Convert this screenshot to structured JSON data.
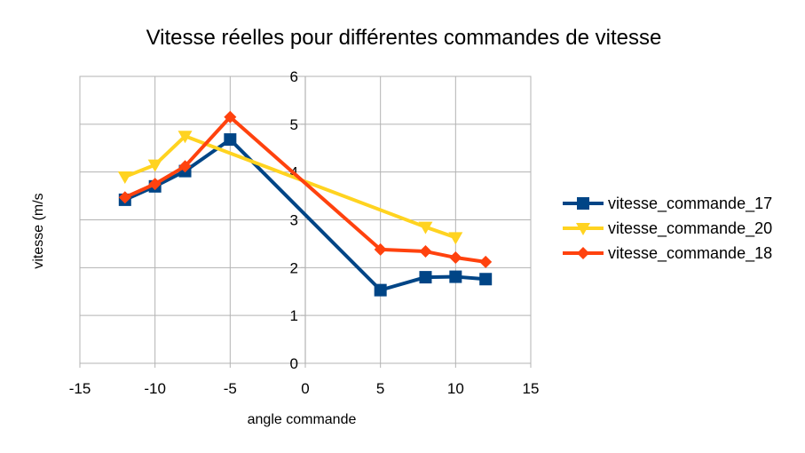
{
  "chart_data": {
    "type": "line",
    "title": "Vitesse réelles pour différentes commandes de vitesse",
    "xlabel": "angle commande",
    "ylabel": "vitesse (m/s",
    "xlim": [
      -15,
      15
    ],
    "ylim": [
      0,
      6
    ],
    "xticks": [
      "-15",
      "-10",
      "-5",
      "0",
      "5",
      "10",
      "15"
    ],
    "yticks": [
      "0",
      "1",
      "2",
      "3",
      "4",
      "5",
      "6"
    ],
    "grid": true,
    "legend": "right",
    "series": [
      {
        "name": "vitesse_commande_17",
        "color": "#004586",
        "marker": "square",
        "x": [
          -12,
          -10,
          -8,
          -5,
          5,
          8,
          10,
          12
        ],
        "y": [
          3.42,
          3.7,
          4.02,
          4.68,
          1.53,
          1.8,
          1.81,
          1.76
        ]
      },
      {
        "name": "vitesse_commande_20",
        "color": "#ffd320",
        "marker": "triangle-down",
        "x": [
          -12,
          -10,
          -8,
          8,
          10
        ],
        "y": [
          3.9,
          4.15,
          4.75,
          2.85,
          2.63
        ]
      },
      {
        "name": "vitesse_commande_18",
        "color": "#ff420e",
        "marker": "diamond",
        "x": [
          -12,
          -10,
          -8,
          -5,
          5,
          8,
          10,
          12
        ],
        "y": [
          3.47,
          3.75,
          4.12,
          5.15,
          2.38,
          2.34,
          2.21,
          2.12
        ]
      }
    ]
  }
}
